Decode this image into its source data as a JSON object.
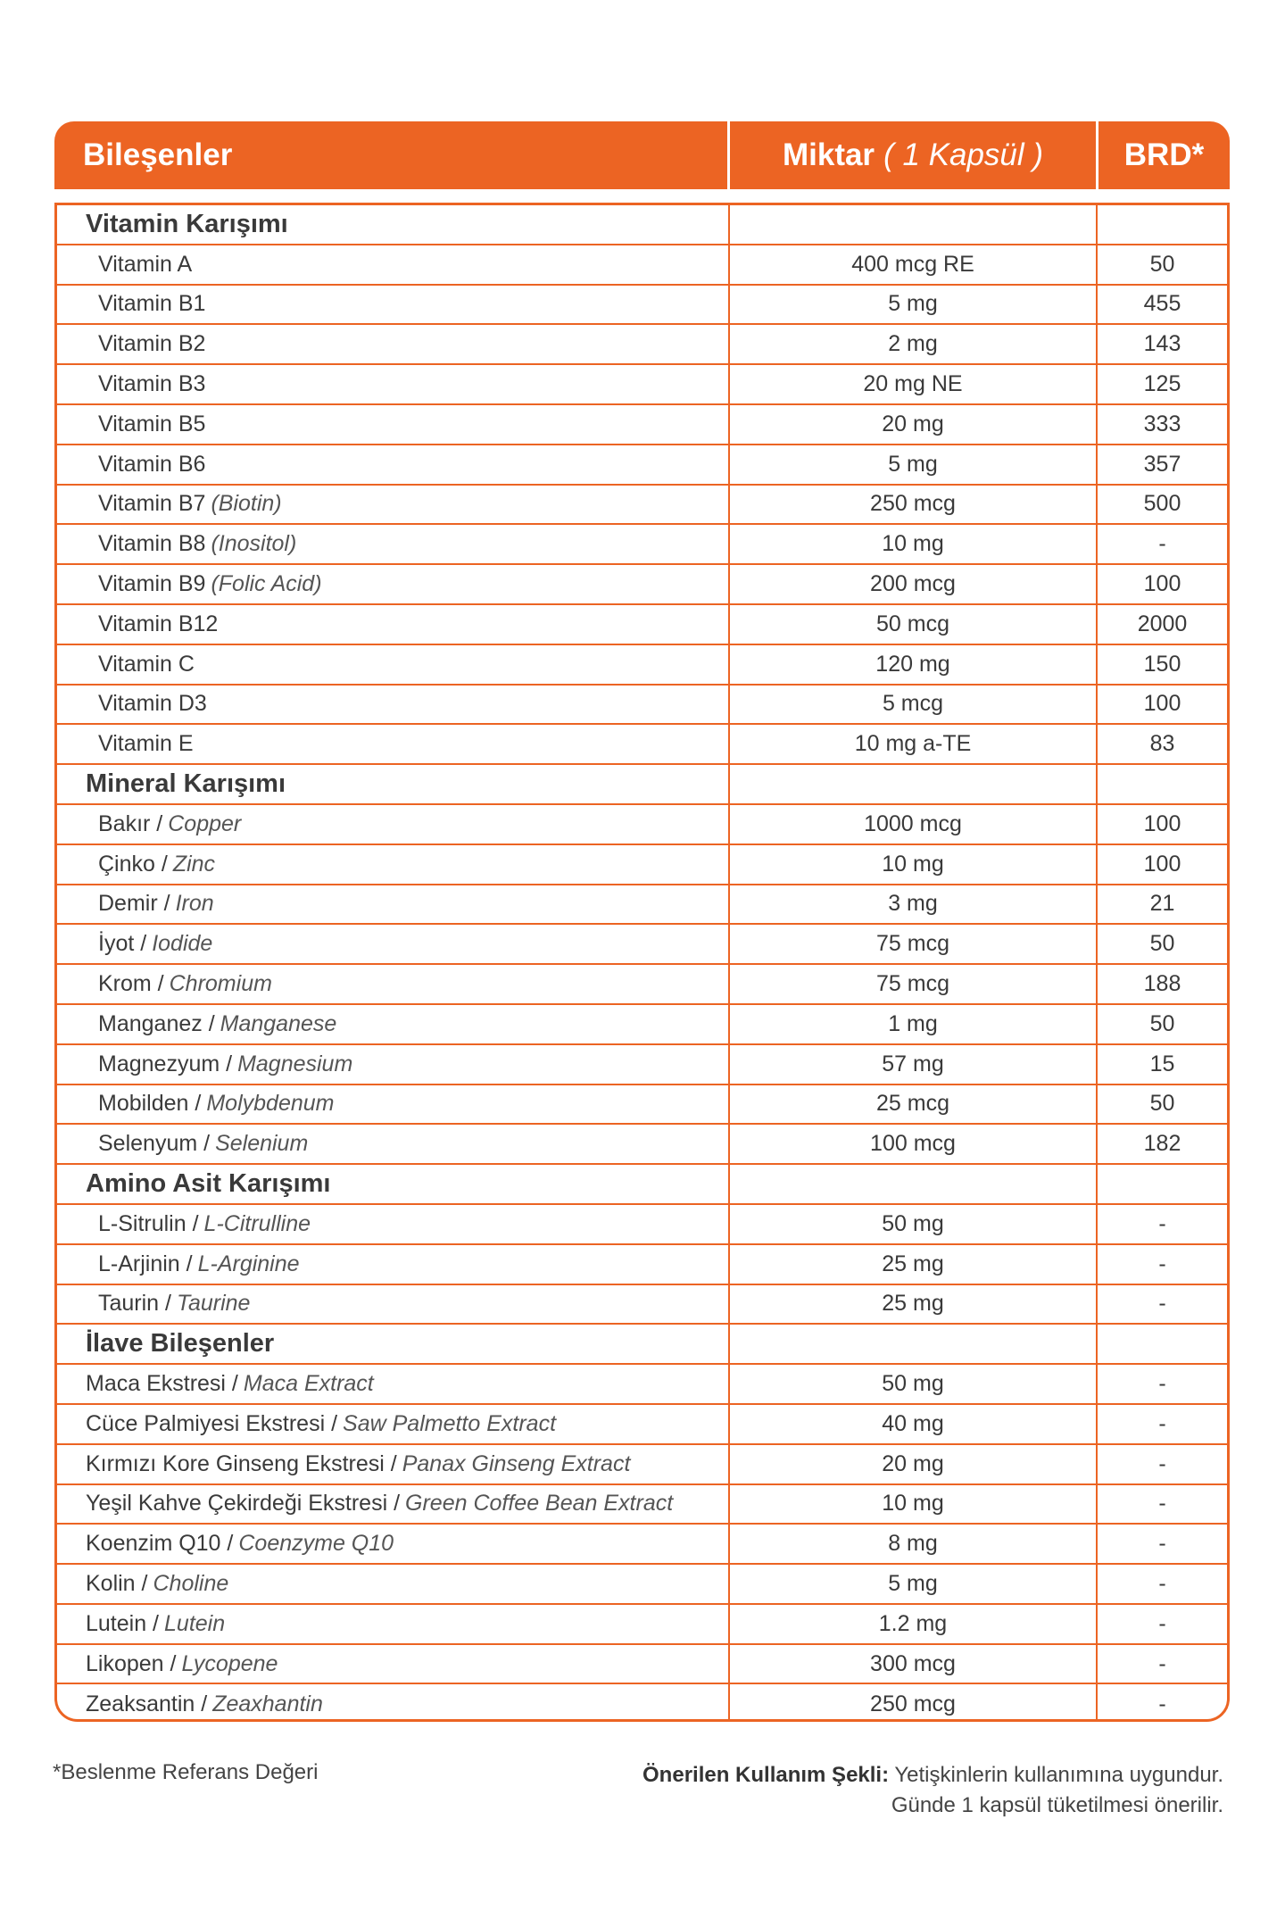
{
  "colors": {
    "accent": "#ec6423",
    "text": "#3a3a3a"
  },
  "header": {
    "col1": "Bileşenler",
    "col2": "Miktar",
    "col2_note": "( 1 Kapsül )",
    "col3": "BRD*"
  },
  "sections": [
    {
      "title": "Vitamin Karışımı",
      "flat": false,
      "items": [
        {
          "name": "Vitamin A",
          "en": "",
          "amount": "400 mcg RE",
          "brd": "50"
        },
        {
          "name": "Vitamin B1",
          "en": "",
          "amount": "5 mg",
          "brd": "455"
        },
        {
          "name": "Vitamin B2",
          "en": "",
          "amount": "2 mg",
          "brd": "143"
        },
        {
          "name": "Vitamin B3",
          "en": "",
          "amount": "20 mg NE",
          "brd": "125"
        },
        {
          "name": "Vitamin B5",
          "en": "",
          "amount": "20 mg",
          "brd": "333"
        },
        {
          "name": "Vitamin B6",
          "en": "",
          "amount": "5 mg",
          "brd": "357"
        },
        {
          "name": "Vitamin B7",
          "en": "(Biotin)",
          "amount": "250 mcg",
          "brd": "500"
        },
        {
          "name": "Vitamin B8",
          "en": "(Inositol)",
          "amount": "10 mg",
          "brd": "-"
        },
        {
          "name": "Vitamin B9",
          "en": "(Folic Acid)",
          "amount": "200 mcg",
          "brd": "100"
        },
        {
          "name": "Vitamin B12",
          "en": "",
          "amount": "50 mcg",
          "brd": "2000"
        },
        {
          "name": "Vitamin C",
          "en": "",
          "amount": "120 mg",
          "brd": "150"
        },
        {
          "name": "Vitamin D3",
          "en": "",
          "amount": "5 mcg",
          "brd": "100"
        },
        {
          "name": "Vitamin E",
          "en": "",
          "amount": "10 mg a-TE",
          "brd": "83"
        }
      ]
    },
    {
      "title": "Mineral Karışımı",
      "flat": false,
      "items": [
        {
          "name": "Bakır /",
          "en": "Copper",
          "amount": "1000 mcg",
          "brd": "100"
        },
        {
          "name": "Çinko /",
          "en": "Zinc",
          "amount": "10 mg",
          "brd": "100"
        },
        {
          "name": "Demir /",
          "en": "Iron",
          "amount": "3 mg",
          "brd": "21"
        },
        {
          "name": "İyot /",
          "en": "Iodide",
          "amount": "75 mcg",
          "brd": "50"
        },
        {
          "name": "Krom /",
          "en": "Chromium",
          "amount": "75 mcg",
          "brd": "188"
        },
        {
          "name": "Manganez /",
          "en": "Manganese",
          "amount": "1 mg",
          "brd": "50"
        },
        {
          "name": "Magnezyum /",
          "en": "Magnesium",
          "amount": "57 mg",
          "brd": "15"
        },
        {
          "name": "Mobilden /",
          "en": "Molybdenum",
          "amount": "25 mcg",
          "brd": "50"
        },
        {
          "name": "Selenyum /",
          "en": "Selenium",
          "amount": "100 mcg",
          "brd": "182"
        }
      ]
    },
    {
      "title": "Amino Asit Karışımı",
      "flat": false,
      "items": [
        {
          "name": "L-Sitrulin /",
          "en": "L-Citrulline",
          "amount": "50 mg",
          "brd": "-"
        },
        {
          "name": "L-Arjinin /",
          "en": "L-Arginine",
          "amount": "25 mg",
          "brd": "-"
        },
        {
          "name": "Taurin /",
          "en": "Taurine",
          "amount": "25 mg",
          "brd": "-"
        }
      ]
    },
    {
      "title": "İlave Bileşenler",
      "flat": true,
      "items": [
        {
          "name": "Maca Ekstresi /",
          "en": "Maca Extract",
          "amount": "50 mg",
          "brd": "-"
        },
        {
          "name": "Cüce Palmiyesi Ekstresi /",
          "en": "Saw Palmetto Extract",
          "amount": "40 mg",
          "brd": "-"
        },
        {
          "name": "Kırmızı Kore Ginseng Ekstresi /",
          "en": "Panax Ginseng Extract",
          "amount": "20 mg",
          "brd": "-"
        },
        {
          "name": "Yeşil Kahve Çekirdeği Ekstresi /",
          "en": "Green Coffee Bean Extract",
          "amount": "10 mg",
          "brd": "-"
        },
        {
          "name": "Koenzim Q10 /",
          "en": "Coenzyme Q10",
          "amount": "8 mg",
          "brd": "-"
        },
        {
          "name": "Kolin /",
          "en": "Choline",
          "amount": "5 mg",
          "brd": "-"
        },
        {
          "name": "Lutein /",
          "en": "Lutein",
          "amount": "1.2 mg",
          "brd": "-"
        },
        {
          "name": "Likopen /",
          "en": "Lycopene",
          "amount": "300 mcg",
          "brd": "-"
        },
        {
          "name": "Zeaksantin /",
          "en": "Zeaxhantin",
          "amount": "250 mcg",
          "brd": "-"
        }
      ]
    }
  ],
  "footer": {
    "note": "*Beslenme Referans Değeri",
    "usage_label": "Önerilen Kullanım Şekli:",
    "usage_line1": "Yetişkinlerin kullanımına uygundur.",
    "usage_line2": "Günde 1 kapsül tüketilmesi önerilir."
  }
}
